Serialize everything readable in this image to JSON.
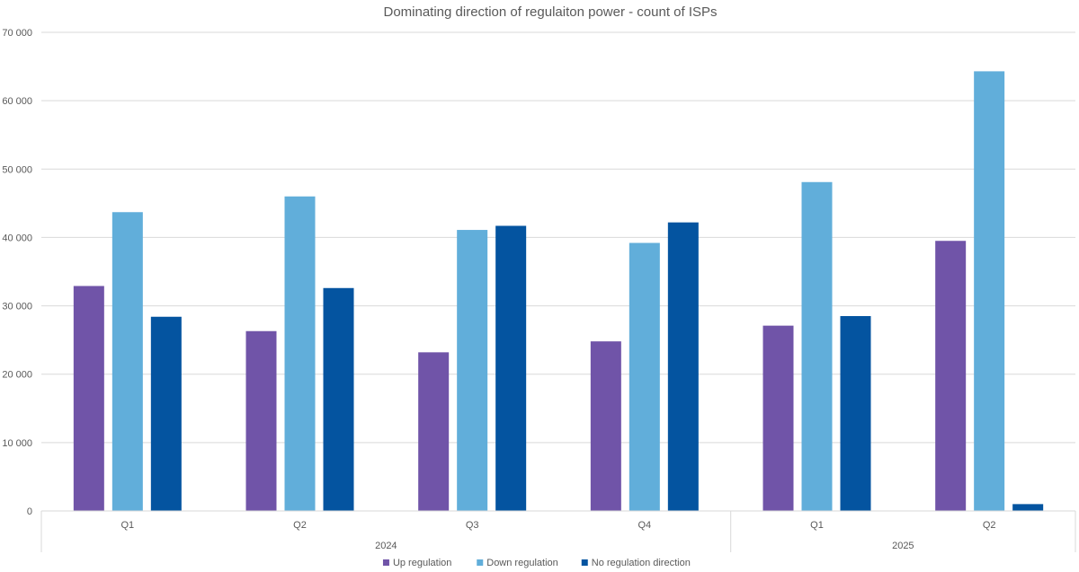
{
  "chart_data": {
    "type": "bar",
    "title": "Dominating direction of regulaiton power - count of ISPs",
    "xlabel": "",
    "ylabel": "",
    "ylim": [
      0,
      70000
    ],
    "y_ticks": [
      "0",
      "10 000",
      "20 000",
      "30 000",
      "40 000",
      "50 000",
      "60 000",
      "70 000"
    ],
    "y_tick_values": [
      0,
      10000,
      20000,
      30000,
      40000,
      50000,
      60000,
      70000
    ],
    "grid": true,
    "legend_position": "bottom",
    "categories": [
      "Q1",
      "Q2",
      "Q3",
      "Q4",
      "Q1",
      "Q2"
    ],
    "groups": [
      {
        "label": "2024",
        "count": 4
      },
      {
        "label": "2025",
        "count": 2
      }
    ],
    "series": [
      {
        "name": "Up regulation",
        "color": "#7054A8",
        "values": [
          32900,
          26300,
          23200,
          24800,
          27100,
          39500
        ]
      },
      {
        "name": "Down regulation",
        "color": "#61AEDA",
        "values": [
          43700,
          46000,
          41100,
          39200,
          48100,
          64300
        ]
      },
      {
        "name": "No regulation direction",
        "color": "#0454A0",
        "values": [
          28400,
          32600,
          41700,
          42200,
          28500,
          1000
        ]
      }
    ]
  }
}
